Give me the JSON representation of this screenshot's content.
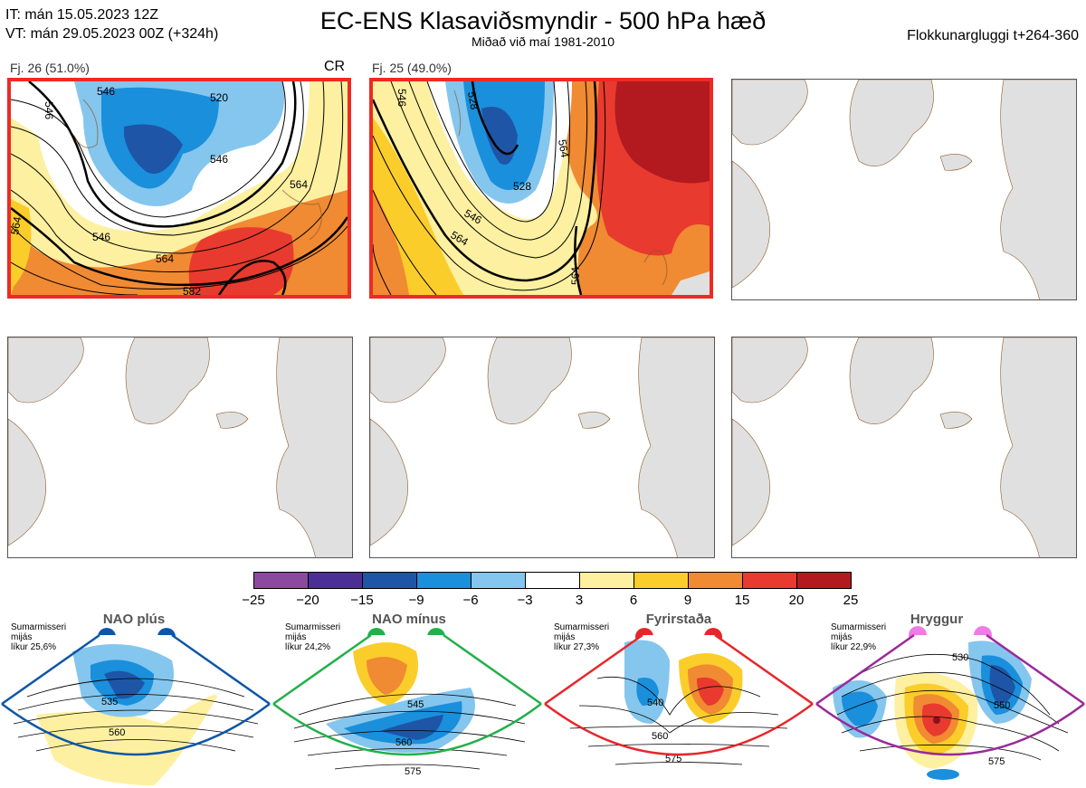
{
  "header": {
    "it_line": "IT: mán 15.05.2023 12Z",
    "vt_line": "VT: mán 29.05.2023 00Z  (+324h)",
    "title": "EC-ENS Klasaviðsmyndir - 500 hPa hæð",
    "subtitle": "Miðað við maí 1981-2010",
    "window": "Flokkunargluggi t+264-360"
  },
  "panels": [
    {
      "label": "Fj. 26 (51.0%)",
      "tag": "CR",
      "contours": [
        "546",
        "520",
        "546",
        "546",
        "564",
        "546",
        "564",
        "564",
        "582"
      ]
    },
    {
      "label": "Fj. 25 (49.0%)",
      "contours": [
        "546",
        "528",
        "528",
        "546",
        "564",
        "564",
        "564"
      ]
    }
  ],
  "colorbar": {
    "ticks": [
      "−25",
      "−20",
      "−15",
      "−9",
      "−6",
      "−3",
      "3",
      "6",
      "9",
      "15",
      "20",
      "25"
    ],
    "colors": [
      "#8a4a9e",
      "#4b2f96",
      "#1e55a6",
      "#1a8fdc",
      "#84c6ee",
      "#ffffff",
      "#fdf0a0",
      "#fbcd2a",
      "#f08a33",
      "#e83a2e",
      "#b21a1f"
    ]
  },
  "regimes": [
    {
      "title": "NAO plús",
      "info": [
        "Sumarmisseri",
        "mijás",
        "líkur 25,6%"
      ],
      "color": "#0d56a8",
      "contours": [
        "535",
        "560"
      ]
    },
    {
      "title": "NAO mínus",
      "info": [
        "Sumarmisseri",
        "mijás",
        "líkur 24,2%"
      ],
      "color": "#22b04a",
      "contours": [
        "545",
        "560",
        "575"
      ]
    },
    {
      "title": "Fyrirstaða",
      "info": [
        "Sumarmisseri",
        "mijás",
        "líkur 27,3%"
      ],
      "color": "#e8262a",
      "contours": [
        "540",
        "560",
        "575"
      ]
    },
    {
      "title": "Hryggur",
      "info": [
        "Sumarmisseri",
        "mijás",
        "líkur 22,9%"
      ],
      "color": "#9a2a9a",
      "contours": [
        "530",
        "550",
        "575"
      ]
    }
  ]
}
